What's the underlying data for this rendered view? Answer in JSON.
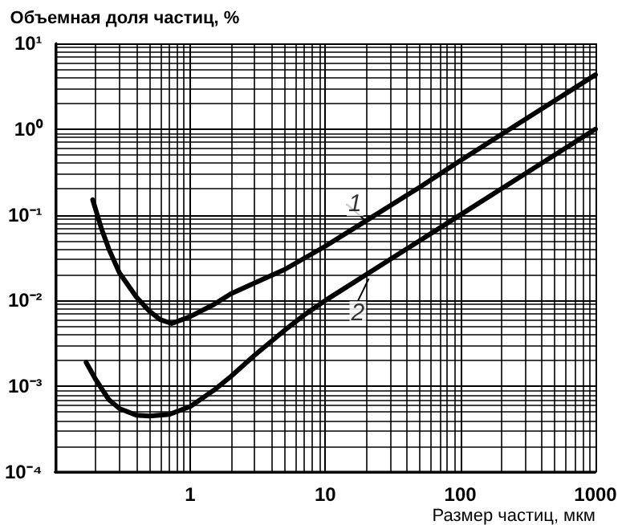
{
  "chart_data": {
    "type": "line",
    "xlabel": "Размер частиц, мкм",
    "ylabel": "Объемная доля частиц, %",
    "series": [
      {
        "color": "#000000",
        "x": [
          0.19,
          0.22,
          0.25,
          0.3,
          0.4,
          0.5,
          0.6,
          0.73,
          1,
          1.5,
          2,
          3,
          5,
          10,
          20,
          50,
          100,
          200,
          500,
          1000
        ],
        "values": [
          0.15,
          0.07,
          0.04,
          0.021,
          0.011,
          0.0075,
          0.006,
          0.0054,
          0.0065,
          0.009,
          0.012,
          0.016,
          0.023,
          0.043,
          0.085,
          0.21,
          0.43,
          0.86,
          2.15,
          4.3
        ]
      },
      {
        "color": "#000000",
        "x": [
          0.17,
          0.2,
          0.25,
          0.3,
          0.4,
          0.5,
          0.7,
          1,
          1.5,
          2,
          3,
          5,
          7,
          10,
          100,
          1000
        ],
        "values": [
          0.0019,
          0.0012,
          0.0007,
          0.00055,
          0.00046,
          0.00045,
          0.00047,
          0.00058,
          0.0009,
          0.0013,
          0.0023,
          0.0045,
          0.0068,
          0.01,
          0.1,
          1
        ]
      }
    ],
    "annotations": [
      {
        "text": "1",
        "x": 20,
        "y": 0.085
      },
      {
        "text": "2",
        "x": 21,
        "y": 0.018
      }
    ],
    "log": "xy",
    "xlim": [
      0.1,
      1000
    ],
    "ylim": [
      0.0001,
      10
    ],
    "xticks": [
      {
        "value": 0.1,
        "label": null
      },
      1,
      10,
      100,
      1000
    ],
    "yticks": [
      {
        "value": 0.0001,
        "label": "10⁻⁴"
      },
      {
        "value": 0.001,
        "label": "10⁻³"
      },
      {
        "value": 0.01,
        "label": "10⁻²"
      },
      {
        "value": 0.1,
        "label": "10⁻¹"
      },
      {
        "value": 1,
        "label": "10⁰"
      },
      {
        "value": 10,
        "label": "10¹"
      }
    ],
    "grid": true,
    "marker": "none",
    "line_style": "solid"
  }
}
